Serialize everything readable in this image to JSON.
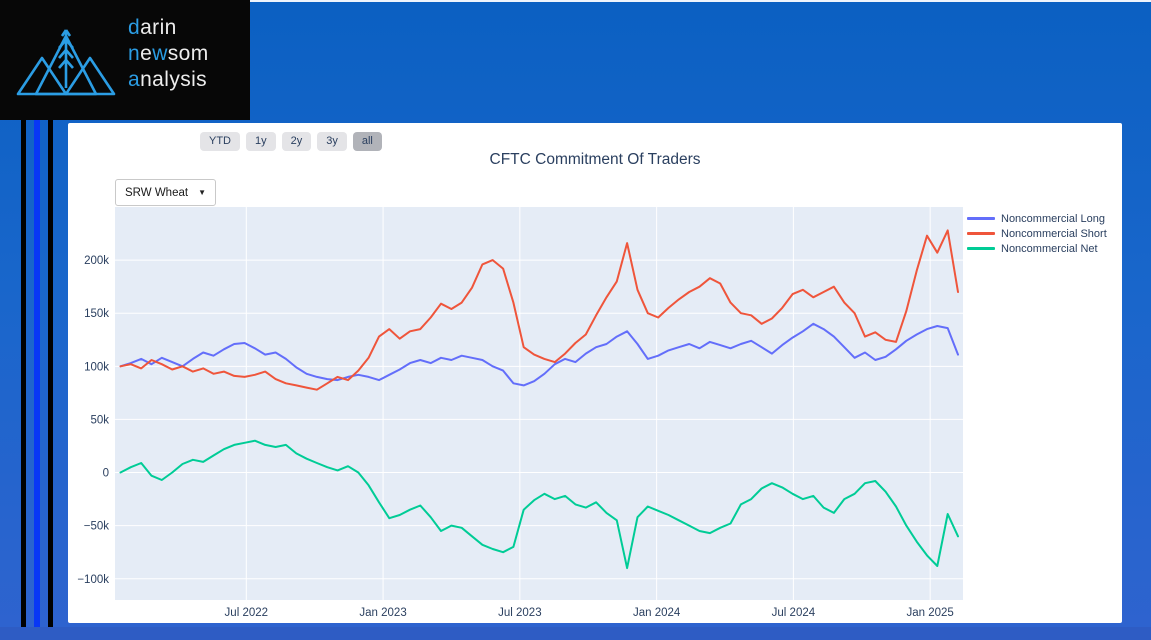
{
  "logo": {
    "lines": [
      {
        "segments": [
          {
            "text": "d",
            "accent": true
          },
          {
            "text": "arin",
            "accent": false
          }
        ]
      },
      {
        "segments": [
          {
            "text": "n",
            "accent": true
          },
          {
            "text": "e",
            "accent": false
          },
          {
            "text": "w",
            "accent": true
          },
          {
            "text": "som",
            "accent": false
          }
        ]
      },
      {
        "segments": [
          {
            "text": "a",
            "accent": true
          },
          {
            "text": "nalysis",
            "accent": false
          }
        ]
      }
    ],
    "accent_color": "#2b9de4",
    "text_color": "#ededed"
  },
  "theme": {
    "page_background_top": "#0b60c2",
    "page_background_bottom": "#2f63cf",
    "bottom_strip": "#2e5cc4",
    "stripe_black": "#000000",
    "stripe_blue": "#0837f5",
    "card_background": "#ffffff",
    "text_color": "#2a3f5f"
  },
  "toolbar": {
    "range_buttons": [
      {
        "label": "YTD",
        "active": false
      },
      {
        "label": "1y",
        "active": false
      },
      {
        "label": "2y",
        "active": false
      },
      {
        "label": "3y",
        "active": false
      },
      {
        "label": "all",
        "active": true
      }
    ]
  },
  "controls": {
    "symbol_select": {
      "value": "SRW Wheat"
    }
  },
  "chart_data": {
    "type": "line",
    "title": "CFTC Commitment Of Traders",
    "xlabel": "",
    "ylabel": "",
    "values_unit": "contracts (thousands)",
    "x_unit": "decimal_year_weekly_approx",
    "x_start": 2022.04,
    "x_step": 0.0378,
    "xlim": [
      2022.02,
      2025.12
    ],
    "ylim": [
      -120,
      250
    ],
    "grid": "on",
    "plot_bg": "#e5ecf6",
    "legend_position": "right",
    "y_ticks": [
      {
        "v": 200,
        "label": "200k"
      },
      {
        "v": 150,
        "label": "150k"
      },
      {
        "v": 100,
        "label": "100k"
      },
      {
        "v": 50,
        "label": "50k"
      },
      {
        "v": 0,
        "label": "0"
      },
      {
        "v": -50,
        "label": "−50k"
      },
      {
        "v": -100,
        "label": "−100k"
      }
    ],
    "x_ticks": [
      {
        "v": 2022.5,
        "label": "Jul 2022"
      },
      {
        "v": 2023.0,
        "label": "Jan 2023"
      },
      {
        "v": 2023.5,
        "label": "Jul 2023"
      },
      {
        "v": 2024.0,
        "label": "Jan 2024"
      },
      {
        "v": 2024.5,
        "label": "Jul 2024"
      },
      {
        "v": 2025.0,
        "label": "Jan 2025"
      }
    ],
    "series": [
      {
        "name": "Noncommercial Long",
        "color": "#636efa",
        "values": [
          100,
          103,
          107,
          102,
          108,
          104,
          100,
          107,
          113,
          110,
          116,
          121,
          122,
          117,
          111,
          113,
          107,
          99,
          93,
          90,
          88,
          87,
          90,
          92,
          90,
          87,
          92,
          97,
          103,
          106,
          103,
          108,
          106,
          110,
          108,
          106,
          100,
          96,
          84,
          82,
          86,
          93,
          102,
          107,
          104,
          112,
          118,
          121,
          128,
          133,
          121,
          107,
          110,
          115,
          118,
          121,
          117,
          123,
          120,
          117,
          121,
          124,
          118,
          112,
          120,
          127,
          133,
          140,
          135,
          128,
          118,
          108,
          113,
          106,
          109,
          116,
          124,
          130,
          135,
          138,
          136,
          111
        ]
      },
      {
        "name": "Noncommercial Short",
        "color": "#ef553b",
        "values": [
          100,
          102,
          98,
          106,
          102,
          97,
          100,
          95,
          98,
          93,
          95,
          91,
          90,
          92,
          95,
          88,
          84,
          82,
          80,
          78,
          84,
          90,
          87,
          96,
          108,
          128,
          135,
          126,
          133,
          135,
          146,
          159,
          154,
          160,
          174,
          196,
          200,
          192,
          160,
          118,
          111,
          107,
          104,
          112,
          122,
          130,
          148,
          165,
          180,
          216,
          172,
          150,
          146,
          155,
          163,
          170,
          175,
          183,
          178,
          160,
          150,
          148,
          140,
          145,
          155,
          168,
          172,
          165,
          170,
          175,
          160,
          150,
          128,
          132,
          125,
          123,
          152,
          190,
          223,
          207,
          228,
          170
        ]
      },
      {
        "name": "Noncommercial Net",
        "color": "#00cc96",
        "values": [
          0,
          5,
          9,
          -3,
          -7,
          0,
          8,
          12,
          10,
          16,
          22,
          26,
          28,
          30,
          26,
          24,
          26,
          18,
          13,
          9,
          5,
          2,
          6,
          0,
          -12,
          -28,
          -43,
          -40,
          -35,
          -31,
          -42,
          -55,
          -50,
          -52,
          -60,
          -68,
          -72,
          -75,
          -70,
          -35,
          -26,
          -20,
          -25,
          -22,
          -30,
          -33,
          -28,
          -38,
          -45,
          -90,
          -42,
          -32,
          -36,
          -40,
          -45,
          -50,
          -55,
          -57,
          -52,
          -48,
          -30,
          -25,
          -15,
          -10,
          -14,
          -20,
          -25,
          -22,
          -33,
          -38,
          -25,
          -20,
          -10,
          -8,
          -18,
          -32,
          -50,
          -65,
          -78,
          -88,
          -39,
          -60
        ]
      }
    ]
  }
}
